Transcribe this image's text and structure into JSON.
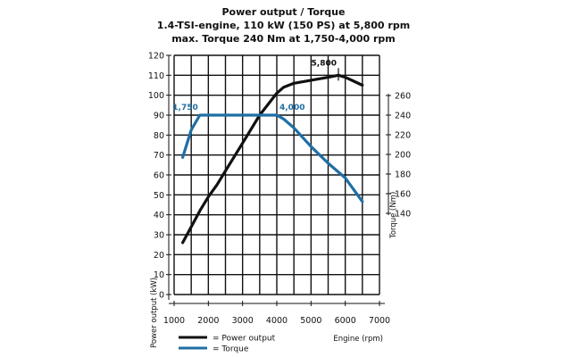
{
  "chart_data": {
    "type": "line",
    "title": "Power output / Torque",
    "subtitle_lines": [
      "1.4-TSI-engine, 110 kW (150 PS) at 5,800 rpm",
      "max. Torque 240 Nm at 1,750-4,000 rpm"
    ],
    "xlabel": "Engine (rpm)",
    "ylabel_left": "Power output (kW)",
    "ylabel_right": "Torque (Nm)",
    "xlim": [
      1000,
      7000
    ],
    "ylim_left": [
      0,
      120
    ],
    "ylim_right": [
      80,
      260
    ],
    "x_ticks": [
      "1000",
      "2000",
      "3000",
      "4000",
      "5000",
      "6000",
      "7000"
    ],
    "y_left_ticks": [
      "0",
      "10",
      "20",
      "30",
      "40",
      "50",
      "60",
      "70",
      "80",
      "90",
      "100",
      "110",
      "120"
    ],
    "y_right_ticks": [
      "140",
      "160",
      "180",
      "200",
      "220",
      "240",
      "260"
    ],
    "grid": true,
    "legend_position": "bottom-left",
    "series": [
      {
        "name": "Power output",
        "axis": "left",
        "color": "#111111",
        "x": [
          1250,
          1500,
          1750,
          2000,
          2250,
          2500,
          3000,
          3500,
          4000,
          4200,
          4500,
          5000,
          5500,
          5800,
          6000,
          6250,
          6500
        ],
        "y": [
          26,
          34,
          42,
          49,
          55,
          62,
          76,
          90,
          101,
          104,
          106,
          107.5,
          109,
          110,
          109,
          107,
          105
        ]
      },
      {
        "name": "Torque",
        "axis": "right",
        "color": "#1f6fa5",
        "x": [
          1250,
          1500,
          1750,
          2000,
          3000,
          4000,
          4200,
          4500,
          5000,
          5500,
          6000,
          6500
        ],
        "y": [
          197,
          225,
          240,
          240,
          240,
          240,
          236,
          227,
          208,
          191,
          176,
          152
        ]
      }
    ],
    "annotations": [
      {
        "label": "1,750",
        "x": 1750,
        "series": "Torque"
      },
      {
        "label": "4,000",
        "x": 4000,
        "series": "Torque"
      },
      {
        "label": "5,800",
        "x": 5800,
        "series": "Power output"
      }
    ],
    "legend": [
      {
        "label": "= Power output",
        "color": "#111111"
      },
      {
        "label": "= Torque",
        "color": "#1f6fa5"
      }
    ]
  }
}
